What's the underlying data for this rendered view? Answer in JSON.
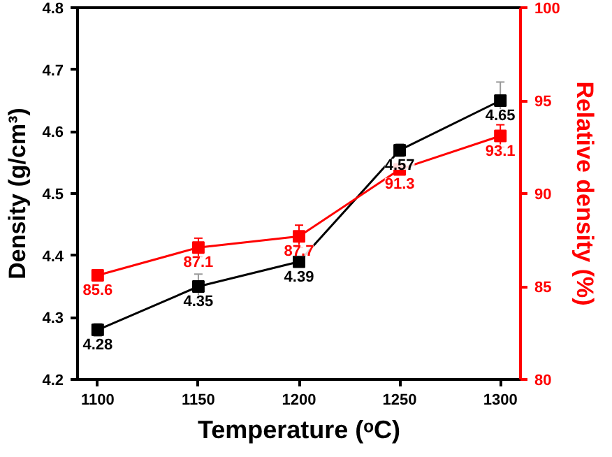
{
  "chart_data": {
    "type": "line",
    "xlabel": "Temperature (ᵒC)",
    "ylabel": "Density (g/cm³)",
    "y2label": "Relative density (%)",
    "x": [
      1100,
      1150,
      1200,
      1250,
      1300
    ],
    "series": [
      {
        "color": "#000000",
        "values": [
          4.28,
          4.35,
          4.39,
          4.57,
          4.65
        ],
        "errors": [
          0.01,
          0.02,
          null,
          0.01,
          0.03
        ]
      },
      {
        "color": "#ff0000",
        "axis": "y2",
        "values": [
          85.6,
          87.1,
          87.7,
          91.3,
          93.1
        ],
        "errors": [
          null,
          0.5,
          0.6,
          null,
          0.6
        ]
      }
    ],
    "xlim": [
      1090,
      1310
    ],
    "xticks": [
      1100,
      1150,
      1200,
      1250,
      1300
    ],
    "ylim": [
      4.2,
      4.8
    ],
    "yticks": [
      {
        "value": 4.2,
        "label": "4.2"
      },
      4.3,
      4.4,
      4.5,
      4.6,
      4.7,
      {
        "value": 4.8,
        "label": "4.8"
      }
    ],
    "y2lim": [
      80,
      100
    ],
    "y2ticks": [
      80,
      85,
      90,
      95,
      100
    ],
    "marker": "square",
    "line_style": "solid",
    "data_labels": true
  }
}
